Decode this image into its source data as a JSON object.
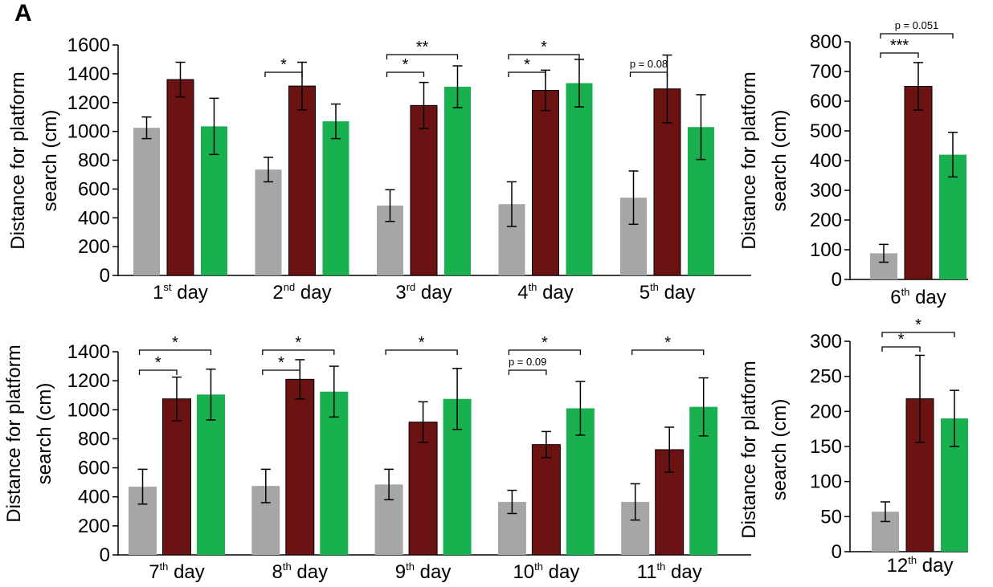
{
  "panel_label": "A",
  "colors": {
    "control": "#a6a6a6",
    "group2": "#6b1212",
    "group3": "#19b050"
  },
  "chart_data": [
    {
      "type": "bar",
      "ylabel": "Distance for platform search (cm)",
      "ylabel_lines": [
        "Distance for platform",
        "search (cm)"
      ],
      "ylim": [
        0,
        1600
      ],
      "yticks": [
        0,
        200,
        400,
        600,
        800,
        1000,
        1200,
        1400,
        1600
      ],
      "categories": [
        {
          "label": "1",
          "sup": "st",
          "suffix": " day"
        },
        {
          "label": "2",
          "sup": "nd",
          "suffix": " day"
        },
        {
          "label": "3",
          "sup": "rd",
          "suffix": " day"
        },
        {
          "label": "4",
          "sup": "th",
          "suffix": " day"
        },
        {
          "label": "5",
          "sup": "th",
          "suffix": " day"
        }
      ],
      "series": [
        {
          "name": "group1",
          "values": [
            1025,
            735,
            485,
            495,
            540
          ],
          "errors": [
            75,
            85,
            110,
            155,
            185
          ]
        },
        {
          "name": "group2",
          "values": [
            1360,
            1315,
            1180,
            1285,
            1295
          ],
          "errors": [
            120,
            165,
            160,
            140,
            235
          ]
        },
        {
          "name": "group3",
          "values": [
            1035,
            1070,
            1310,
            1335,
            1030
          ],
          "errors": [
            195,
            120,
            145,
            165,
            225
          ]
        }
      ],
      "annotations": [
        {
          "cat": 1,
          "from": 0,
          "to": 1,
          "level": 0,
          "text": "*"
        },
        {
          "cat": 2,
          "from": 0,
          "to": 1,
          "level": 0,
          "text": "*"
        },
        {
          "cat": 2,
          "from": 0,
          "to": 2,
          "level": 1,
          "text": "**"
        },
        {
          "cat": 3,
          "from": 0,
          "to": 1,
          "level": 0,
          "text": "*"
        },
        {
          "cat": 3,
          "from": 0,
          "to": 2,
          "level": 1,
          "text": "*"
        },
        {
          "cat": 4,
          "from": 0,
          "to": 1,
          "level": 0,
          "text": "p = 0.08"
        }
      ]
    },
    {
      "type": "bar",
      "ylabel": "Distance for platform search (cm)",
      "ylabel_lines": [
        "Distance for platform",
        "search (cm)"
      ],
      "ylim": [
        0,
        800
      ],
      "yticks": [
        0,
        100,
        200,
        300,
        400,
        500,
        600,
        700,
        800
      ],
      "categories": [
        {
          "label": "6",
          "sup": "th",
          "suffix": " day"
        }
      ],
      "series": [
        {
          "name": "group1",
          "values": [
            88
          ],
          "errors": [
            30
          ]
        },
        {
          "name": "group2",
          "values": [
            650
          ],
          "errors": [
            80
          ]
        },
        {
          "name": "group3",
          "values": [
            420
          ],
          "errors": [
            75
          ]
        }
      ],
      "annotations": [
        {
          "cat": 0,
          "from": 0,
          "to": 1,
          "level": 0,
          "text": "***"
        },
        {
          "cat": 0,
          "from": 0,
          "to": 2,
          "level": 1,
          "text": "p = 0.051"
        }
      ]
    },
    {
      "type": "bar",
      "ylabel": "Distance for platform search (cm)",
      "ylabel_lines": [
        "Distance for platform",
        "search (cm)"
      ],
      "ylim": [
        0,
        1400
      ],
      "yticks": [
        0,
        200,
        400,
        600,
        800,
        1000,
        1200,
        1400
      ],
      "categories": [
        {
          "label": "7",
          "sup": "th",
          "suffix": " day"
        },
        {
          "label": "8",
          "sup": "th",
          "suffix": " day"
        },
        {
          "label": "9",
          "sup": "th",
          "suffix": " day"
        },
        {
          "label": "10",
          "sup": "th",
          "suffix": " day"
        },
        {
          "label": "11",
          "sup": "th",
          "suffix": " day"
        }
      ],
      "series": [
        {
          "name": "group1",
          "values": [
            470,
            475,
            485,
            365,
            365
          ],
          "errors": [
            120,
            115,
            105,
            80,
            125
          ]
        },
        {
          "name": "group2",
          "values": [
            1075,
            1210,
            915,
            760,
            725
          ],
          "errors": [
            150,
            135,
            140,
            90,
            155
          ]
        },
        {
          "name": "group3",
          "values": [
            1105,
            1125,
            1075,
            1010,
            1020
          ],
          "errors": [
            175,
            175,
            210,
            185,
            200
          ]
        }
      ],
      "annotations": [
        {
          "cat": 0,
          "from": 0,
          "to": 1,
          "level": 0,
          "text": "*"
        },
        {
          "cat": 0,
          "from": 0,
          "to": 2,
          "level": 1,
          "text": "*"
        },
        {
          "cat": 1,
          "from": 0,
          "to": 1,
          "level": 0,
          "text": "*"
        },
        {
          "cat": 1,
          "from": 0,
          "to": 2,
          "level": 1,
          "text": "*"
        },
        {
          "cat": 2,
          "from": 0,
          "to": 2,
          "level": 1,
          "text": "*"
        },
        {
          "cat": 3,
          "from": 0,
          "to": 1,
          "level": 0,
          "text": "p = 0.09"
        },
        {
          "cat": 3,
          "from": 0,
          "to": 2,
          "level": 1,
          "text": "*"
        },
        {
          "cat": 4,
          "from": 0,
          "to": 2,
          "level": 1,
          "text": "*"
        }
      ]
    },
    {
      "type": "bar",
      "ylabel": "Distance for platform search (cm)",
      "ylabel_lines": [
        "Distance for platform",
        "search (cm)"
      ],
      "ylim": [
        0,
        300
      ],
      "yticks": [
        0,
        50,
        100,
        150,
        200,
        250,
        300
      ],
      "categories": [
        {
          "label": "12",
          "sup": "th",
          "suffix": " day"
        }
      ],
      "series": [
        {
          "name": "group1",
          "values": [
            57
          ],
          "errors": [
            14
          ]
        },
        {
          "name": "group2",
          "values": [
            218
          ],
          "errors": [
            62
          ]
        },
        {
          "name": "group3",
          "values": [
            190
          ],
          "errors": [
            40
          ]
        }
      ],
      "annotations": [
        {
          "cat": 0,
          "from": 0,
          "to": 1,
          "level": 0,
          "text": "*"
        },
        {
          "cat": 0,
          "from": 0,
          "to": 2,
          "level": 1,
          "text": "*"
        }
      ]
    }
  ]
}
